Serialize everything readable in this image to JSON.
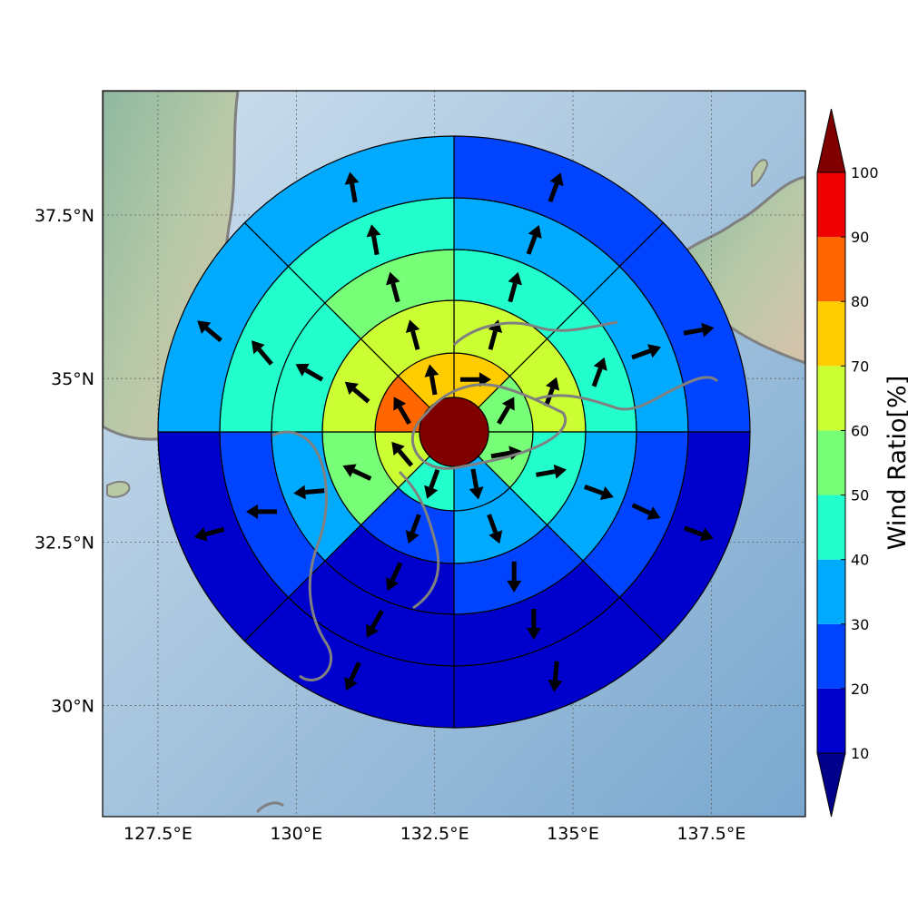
{
  "chart_data": {
    "type": "polar-sector-map",
    "description_note": "",
    "x_ticks": [
      "127.5°E",
      "130°E",
      "132.5°E",
      "135°E",
      "137.5°E"
    ],
    "x_tick_values": [
      127.5,
      130,
      132.5,
      135,
      137.5
    ],
    "y_ticks": [
      "30°N",
      "32.5°N",
      "35°N",
      "37.5°N"
    ],
    "y_tick_values": [
      30,
      32.5,
      35,
      37.5
    ],
    "xlim": [
      126.5,
      139.2
    ],
    "ylim": [
      28.3,
      39.4
    ],
    "grid": true,
    "colorbar": {
      "label": "Wind Ratio[%]",
      "ticks": [
        "10",
        "20",
        "30",
        "40",
        "50",
        "60",
        "70",
        "80",
        "90",
        "100"
      ],
      "levels": [
        10,
        20,
        30,
        40,
        50,
        60,
        70,
        80,
        90,
        100
      ],
      "colors": [
        "#0000cd",
        "#0044ff",
        "#00aaff",
        "#22ffcc",
        "#77ff77",
        "#ccff33",
        "#ffcc00",
        "#ff6600",
        "#ee0000"
      ],
      "under_color": "#00008b",
      "over_color": "#800000"
    },
    "center_value": 100,
    "sector_order": "clockwise from north, 8 sectors of 45°",
    "rings": [
      {
        "ring": 1,
        "values": [
          75,
          55,
          55,
          35,
          45,
          65,
          85,
          75
        ]
      },
      {
        "ring": 2,
        "values": [
          65,
          65,
          45,
          35,
          25,
          55,
          65,
          65
        ]
      },
      {
        "ring": 3,
        "values": [
          45,
          45,
          35,
          25,
          15,
          35,
          45,
          55
        ]
      },
      {
        "ring": 4,
        "values": [
          35,
          35,
          25,
          15,
          15,
          25,
          45,
          45
        ]
      },
      {
        "ring": 5,
        "values": [
          25,
          25,
          15,
          15,
          15,
          15,
          35,
          35
        ]
      }
    ],
    "wind_arrows_deg": [
      [
        90,
        30,
        80,
        170,
        200,
        320,
        330,
        350
      ],
      [
        15,
        20,
        80,
        160,
        200,
        295,
        310,
        345
      ],
      [
        15,
        20,
        110,
        180,
        205,
        265,
        300,
        345
      ],
      [
        20,
        70,
        115,
        180,
        210,
        270,
        320,
        350
      ],
      [
        20,
        80,
        110,
        185,
        205,
        255,
        310,
        350
      ]
    ]
  }
}
